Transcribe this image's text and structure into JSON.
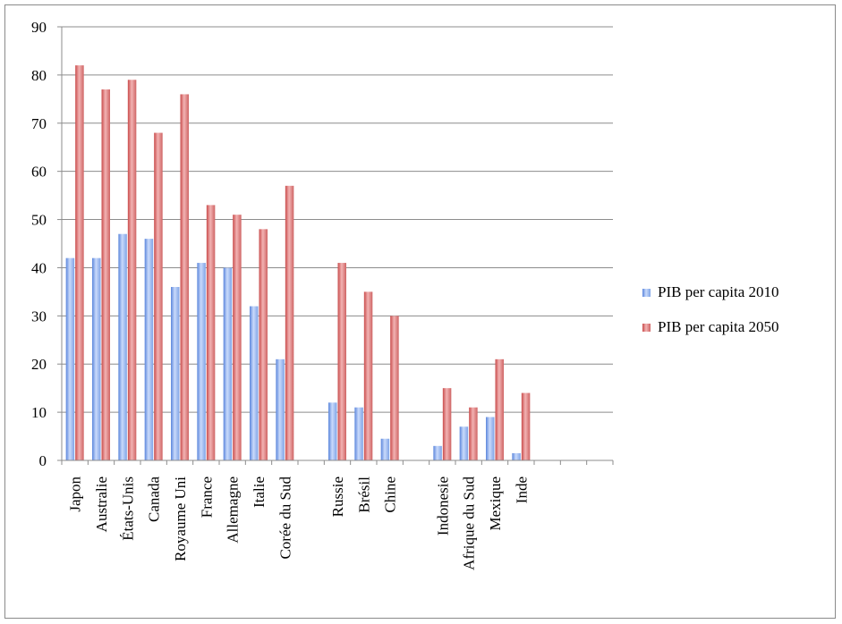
{
  "chart_data": {
    "type": "bar",
    "title": "",
    "xlabel": "",
    "ylabel": "",
    "ylim": [
      0,
      90
    ],
    "yticks": [
      0,
      10,
      20,
      30,
      40,
      50,
      60,
      70,
      80,
      90
    ],
    "grid": true,
    "legend_position": "right",
    "slots": [
      "Japon",
      "Australie",
      "États-Unis",
      "Canada",
      "Royaume Uni",
      "France",
      "Allemagne",
      "Italie",
      "Corée du Sud",
      "",
      "Russie",
      "Brésil",
      "Chine",
      "",
      "Indonesie",
      "Afrique du Sud",
      "Mexique",
      "Inde",
      "",
      "",
      ""
    ],
    "categories": [
      "Japon",
      "Australie",
      "États-Unis",
      "Canada",
      "Royaume Uni",
      "France",
      "Allemagne",
      "Italie",
      "Corée du Sud",
      "Russie",
      "Brésil",
      "Chine",
      "Indonesie",
      "Afrique du Sud",
      "Mexique",
      "Inde"
    ],
    "series": [
      {
        "name": "PIB per capita 2010",
        "color": "#8fb2ee",
        "values": [
          42,
          42,
          47,
          46,
          36,
          41,
          40,
          32,
          21,
          12,
          11,
          4.5,
          3,
          7,
          9,
          1.5
        ]
      },
      {
        "name": "PIB per capita 2050",
        "color": "#dc7b7b",
        "values": [
          82,
          77,
          79,
          68,
          76,
          53,
          51,
          48,
          57,
          41,
          35,
          30,
          15,
          11,
          21,
          14
        ]
      }
    ]
  }
}
